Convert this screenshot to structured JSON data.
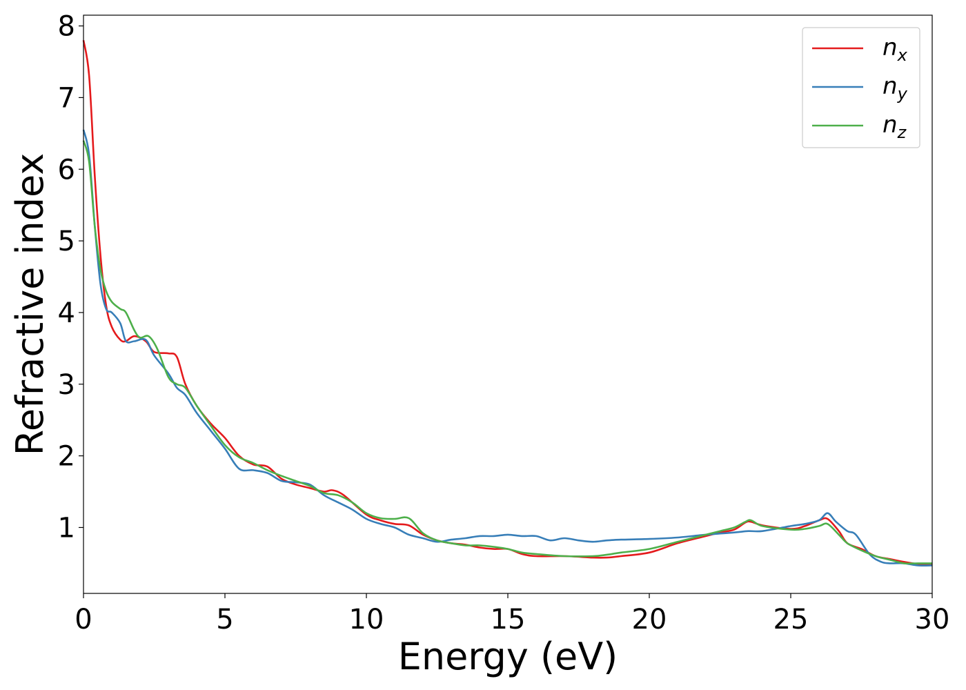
{
  "chart_data": {
    "type": "line",
    "title": "",
    "xlabel": "Energy (eV)",
    "ylabel": "Refractive index",
    "xlim": [
      0,
      30
    ],
    "ylim": [
      0.08,
      8.15
    ],
    "xticks": [
      0,
      5,
      10,
      15,
      20,
      25,
      30
    ],
    "yticks": [
      1,
      2,
      3,
      4,
      5,
      6,
      7,
      8
    ],
    "grid": false,
    "legend_position": "top-right",
    "series": [
      {
        "name": "n_x",
        "base": "n",
        "sub": "x",
        "color": "#e41a1c",
        "x": [
          0,
          0.2,
          0.4,
          0.6,
          0.8,
          1.0,
          1.3,
          1.5,
          1.8,
          2.2,
          2.5,
          3.0,
          3.3,
          3.6,
          4.0,
          4.5,
          5.0,
          5.5,
          6.0,
          6.5,
          7.0,
          7.5,
          8.0,
          8.5,
          8.8,
          9.2,
          10.0,
          10.5,
          11.0,
          11.5,
          12.0,
          12.5,
          13.0,
          13.5,
          14.0,
          14.5,
          15.0,
          15.5,
          16.0,
          17.0,
          18.0,
          18.5,
          19.0,
          20.0,
          21.0,
          22.0,
          22.5,
          23.0,
          23.4,
          23.6,
          24.0,
          25.0,
          25.5,
          26.0,
          26.3,
          26.7,
          27.0,
          27.5,
          28.0,
          28.5,
          29.0,
          29.5,
          30.0
        ],
        "y": [
          7.8,
          7.3,
          5.9,
          4.8,
          4.1,
          3.8,
          3.62,
          3.6,
          3.67,
          3.6,
          3.45,
          3.43,
          3.38,
          3.0,
          2.7,
          2.45,
          2.25,
          2.0,
          1.88,
          1.85,
          1.68,
          1.6,
          1.55,
          1.5,
          1.52,
          1.45,
          1.18,
          1.1,
          1.05,
          1.03,
          0.9,
          0.82,
          0.78,
          0.76,
          0.72,
          0.7,
          0.7,
          0.63,
          0.6,
          0.6,
          0.58,
          0.58,
          0.6,
          0.65,
          0.78,
          0.88,
          0.93,
          0.97,
          1.07,
          1.08,
          1.03,
          0.98,
          1.02,
          1.1,
          1.12,
          0.95,
          0.78,
          0.7,
          0.6,
          0.56,
          0.52,
          0.49,
          0.48
        ]
      },
      {
        "name": "n_y",
        "base": "n",
        "sub": "y",
        "color": "#377eb8",
        "x": [
          0,
          0.2,
          0.4,
          0.6,
          0.8,
          1.0,
          1.3,
          1.5,
          1.8,
          2.2,
          2.5,
          3.0,
          3.3,
          3.6,
          4.0,
          4.5,
          5.0,
          5.5,
          6.0,
          6.5,
          7.0,
          7.5,
          8.0,
          8.5,
          9.0,
          9.5,
          10.0,
          10.5,
          11.0,
          11.5,
          12.0,
          12.5,
          13.0,
          13.5,
          14.0,
          14.5,
          15.0,
          15.5,
          16.0,
          16.5,
          17.0,
          17.5,
          18.0,
          18.5,
          19.0,
          20.0,
          21.0,
          22.0,
          23.0,
          23.5,
          24.0,
          25.0,
          25.5,
          26.0,
          26.3,
          26.6,
          27.0,
          27.3,
          27.8,
          28.2,
          28.5,
          29.0,
          29.5,
          30.0
        ],
        "y": [
          6.55,
          6.2,
          5.2,
          4.4,
          4.05,
          4.0,
          3.85,
          3.6,
          3.6,
          3.62,
          3.4,
          3.15,
          2.95,
          2.85,
          2.6,
          2.35,
          2.1,
          1.82,
          1.8,
          1.76,
          1.65,
          1.63,
          1.6,
          1.45,
          1.35,
          1.25,
          1.12,
          1.05,
          1.0,
          0.9,
          0.85,
          0.8,
          0.83,
          0.85,
          0.88,
          0.88,
          0.9,
          0.88,
          0.88,
          0.82,
          0.85,
          0.82,
          0.8,
          0.82,
          0.83,
          0.84,
          0.86,
          0.9,
          0.93,
          0.95,
          0.95,
          1.02,
          1.05,
          1.1,
          1.2,
          1.08,
          0.95,
          0.9,
          0.62,
          0.52,
          0.5,
          0.5,
          0.47,
          0.47
        ]
      },
      {
        "name": "n_z",
        "base": "n",
        "sub": "z",
        "color": "#4daf4a",
        "x": [
          0,
          0.2,
          0.4,
          0.6,
          0.8,
          1.0,
          1.3,
          1.5,
          1.8,
          2.0,
          2.3,
          2.6,
          3.0,
          3.3,
          3.6,
          4.0,
          4.5,
          5.0,
          5.5,
          6.0,
          6.5,
          7.0,
          7.5,
          8.0,
          8.5,
          9.0,
          9.5,
          10.0,
          10.5,
          11.0,
          11.5,
          12.0,
          12.5,
          13.0,
          13.5,
          14.0,
          14.5,
          15.0,
          15.5,
          16.0,
          17.0,
          18.0,
          18.5,
          19.0,
          20.0,
          21.0,
          22.0,
          22.5,
          23.0,
          23.4,
          23.6,
          24.0,
          25.0,
          25.5,
          26.0,
          26.3,
          26.7,
          27.0,
          27.5,
          28.0,
          28.5,
          29.0,
          29.5,
          30.0
        ],
        "y": [
          6.4,
          6.1,
          5.2,
          4.6,
          4.3,
          4.15,
          4.05,
          4.0,
          3.75,
          3.65,
          3.67,
          3.5,
          3.1,
          3.0,
          2.95,
          2.7,
          2.42,
          2.15,
          1.98,
          1.9,
          1.8,
          1.72,
          1.65,
          1.58,
          1.48,
          1.45,
          1.35,
          1.2,
          1.13,
          1.12,
          1.13,
          0.92,
          0.82,
          0.78,
          0.75,
          0.75,
          0.73,
          0.7,
          0.65,
          0.63,
          0.6,
          0.6,
          0.62,
          0.65,
          0.7,
          0.8,
          0.9,
          0.95,
          1.0,
          1.08,
          1.1,
          1.02,
          0.97,
          0.98,
          1.02,
          1.05,
          0.9,
          0.78,
          0.68,
          0.6,
          0.55,
          0.5,
          0.5,
          0.5
        ]
      }
    ]
  }
}
